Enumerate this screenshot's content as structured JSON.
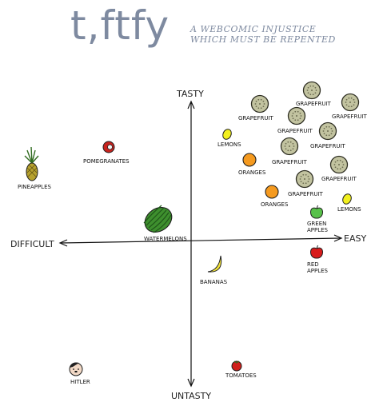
{
  "header": {
    "title": "t,ftfy",
    "subtitle_line1": "A webcomic injustice",
    "subtitle_line2": "which must be repented"
  },
  "axes": {
    "top": "Tasty",
    "bottom": "Untasty",
    "left": "Difficult",
    "right": "Easy"
  },
  "chart_data": {
    "type": "scatter",
    "x_axis": {
      "low": "Difficult",
      "high": "Easy"
    },
    "y_axis": {
      "low": "Untasty",
      "high": "Tasty"
    },
    "items": [
      {
        "label": "Grapefruit",
        "icon": "grapefruit-icon"
      },
      {
        "label": "Grapefruit",
        "icon": "grapefruit-icon"
      },
      {
        "label": "Grapefruit",
        "icon": "grapefruit-icon"
      },
      {
        "label": "Grapefruit",
        "icon": "grapefruit-icon"
      },
      {
        "label": "Grapefruit",
        "icon": "grapefruit-icon"
      },
      {
        "label": "Grapefruit",
        "icon": "grapefruit-icon"
      },
      {
        "label": "Grapefruit",
        "icon": "grapefruit-icon"
      },
      {
        "label": "Grapefruit",
        "icon": "grapefruit-icon"
      },
      {
        "label": "Lemons",
        "icon": "lemon-icon"
      },
      {
        "label": "Lemons",
        "icon": "lemon-icon"
      },
      {
        "label": "Oranges",
        "icon": "orange-icon"
      },
      {
        "label": "Oranges",
        "icon": "orange-icon"
      },
      {
        "label": "Green Apples",
        "icon": "green-apple-icon"
      },
      {
        "label": "Red Apples",
        "icon": "red-apple-icon"
      },
      {
        "label": "Pomegranates",
        "icon": "pomegranate-icon"
      },
      {
        "label": "Pineapples",
        "icon": "pineapple-icon"
      },
      {
        "label": "Watermelons",
        "icon": "watermelon-icon"
      },
      {
        "label": "Bananas",
        "icon": "banana-icon"
      },
      {
        "label": "Tomatoes",
        "icon": "tomato-icon"
      },
      {
        "label": "Hitler",
        "icon": "hitler-face-icon"
      }
    ]
  },
  "colors": {
    "title": "#7e8aa0",
    "grapefruit_fill": "#c2c3a0",
    "grapefruit_stroke": "#2e2e22",
    "lemon": "#f2f01e",
    "orange": "#f59a1f",
    "green_apple": "#58c14a",
    "red_apple": "#d81c1c",
    "pomegranate": "#c8231e",
    "pineapple": "#b6a12e",
    "pineapple_leaves": "#2f6a1e",
    "watermelon": "#3e8f2e",
    "watermelon_stripe": "#1f5619",
    "banana": "#f1e23a",
    "tomato": "#d11f1a",
    "face": "#f2d9c6"
  }
}
